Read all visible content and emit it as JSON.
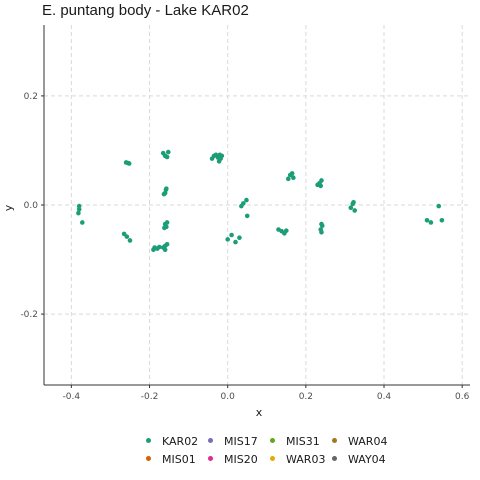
{
  "chart_data": {
    "type": "scatter",
    "title": "E. puntang body - Lake KAR02",
    "xlabel": "x",
    "ylabel": "y",
    "xlim": [
      -0.47,
      0.62
    ],
    "ylim": [
      -0.33,
      0.33
    ],
    "x_ticks": [
      -0.4,
      -0.2,
      0.0,
      0.2,
      0.4,
      0.6
    ],
    "x_tick_labels": [
      "-0.4",
      "-0.2",
      "0.0",
      "0.2",
      "0.4",
      "0.6"
    ],
    "y_ticks": [
      -0.2,
      0.0,
      0.2
    ],
    "y_tick_labels": [
      "-0.2",
      "0.0",
      "0.2"
    ],
    "grid": true,
    "legend_position": "bottom",
    "series": [
      {
        "name": "KAR02",
        "color": "#1b9e77",
        "points": [
          [
            -0.38,
            -0.002
          ],
          [
            -0.38,
            -0.008
          ],
          [
            -0.382,
            -0.015
          ],
          [
            -0.372,
            -0.032
          ],
          [
            -0.26,
            0.078
          ],
          [
            -0.255,
            0.077
          ],
          [
            -0.252,
            0.076
          ],
          [
            -0.265,
            -0.053
          ],
          [
            -0.258,
            -0.058
          ],
          [
            -0.25,
            -0.065
          ],
          [
            -0.19,
            -0.082
          ],
          [
            -0.187,
            -0.078
          ],
          [
            -0.18,
            -0.08
          ],
          [
            -0.175,
            -0.077
          ],
          [
            -0.165,
            -0.078
          ],
          [
            -0.16,
            -0.075
          ],
          [
            -0.155,
            -0.072
          ],
          [
            -0.16,
            -0.082
          ],
          [
            -0.165,
            0.095
          ],
          [
            -0.16,
            0.09
          ],
          [
            -0.155,
            0.088
          ],
          [
            -0.152,
            0.097
          ],
          [
            -0.16,
            0.022
          ],
          [
            -0.158,
            0.028
          ],
          [
            -0.157,
            0.03
          ],
          [
            -0.163,
            0.02
          ],
          [
            -0.16,
            -0.035
          ],
          [
            -0.157,
            -0.04
          ],
          [
            -0.162,
            -0.042
          ],
          [
            -0.155,
            -0.032
          ],
          [
            -0.04,
            0.085
          ],
          [
            -0.035,
            0.09
          ],
          [
            -0.03,
            0.092
          ],
          [
            -0.025,
            0.087
          ],
          [
            -0.02,
            0.092
          ],
          [
            -0.018,
            0.085
          ],
          [
            -0.022,
            0.08
          ],
          [
            -0.015,
            0.09
          ],
          [
            0.0,
            -0.063
          ],
          [
            0.01,
            -0.055
          ],
          [
            0.02,
            -0.068
          ],
          [
            0.03,
            -0.06
          ],
          [
            0.035,
            -0.002
          ],
          [
            0.04,
            0.003
          ],
          [
            0.048,
            0.009
          ],
          [
            0.05,
            -0.02
          ],
          [
            0.13,
            -0.045
          ],
          [
            0.138,
            -0.048
          ],
          [
            0.145,
            -0.052
          ],
          [
            0.15,
            -0.047
          ],
          [
            0.155,
            0.048
          ],
          [
            0.16,
            0.055
          ],
          [
            0.165,
            0.058
          ],
          [
            0.168,
            0.05
          ],
          [
            0.23,
            0.037
          ],
          [
            0.235,
            0.04
          ],
          [
            0.24,
            0.045
          ],
          [
            0.238,
            0.035
          ],
          [
            0.24,
            -0.035
          ],
          [
            0.238,
            -0.045
          ],
          [
            0.24,
            -0.05
          ],
          [
            0.242,
            -0.038
          ],
          [
            0.315,
            -0.005
          ],
          [
            0.32,
            0.002
          ],
          [
            0.325,
            -0.01
          ],
          [
            0.322,
            0.005
          ],
          [
            0.51,
            -0.028
          ],
          [
            0.52,
            -0.032
          ],
          [
            0.54,
            -0.002
          ],
          [
            0.548,
            -0.028
          ]
        ]
      },
      {
        "name": "MIS01",
        "color": "#d95f02",
        "points": []
      },
      {
        "name": "MIS17",
        "color": "#7570b3",
        "points": []
      },
      {
        "name": "MIS20",
        "color": "#e7298a",
        "points": []
      },
      {
        "name": "MIS31",
        "color": "#66a61e",
        "points": []
      },
      {
        "name": "WAR03",
        "color": "#e6ab02",
        "points": []
      },
      {
        "name": "WAR04",
        "color": "#a6761d",
        "points": []
      },
      {
        "name": "WAY04",
        "color": "#666666",
        "points": []
      }
    ]
  },
  "legend_order": [
    "KAR02",
    "MIS17",
    "MIS31",
    "WAR04",
    "MIS01",
    "MIS20",
    "WAR03",
    "WAY04"
  ]
}
